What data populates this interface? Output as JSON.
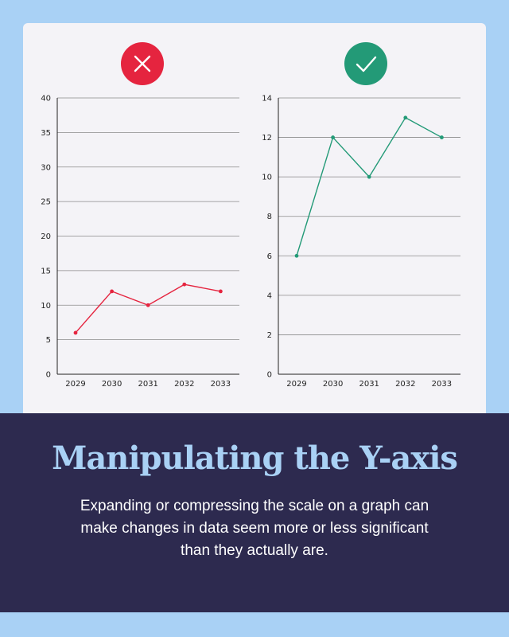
{
  "colors": {
    "bad": "#e5243f",
    "good": "#239a77",
    "background": "#a9d1f5",
    "banner": "#2d2a4f"
  },
  "badges": {
    "left_icon": "x-icon",
    "right_icon": "check-icon"
  },
  "headline": "Manipulating the Y-axis",
  "body": "Expanding or compressing the scale on a graph can make changes in data seem more or less significant than they actually are.",
  "chart_data": [
    {
      "type": "line",
      "categories": [
        "2029",
        "2030",
        "2031",
        "2032",
        "2033"
      ],
      "values": [
        6,
        12,
        10,
        13,
        12
      ],
      "ylim": [
        0,
        40
      ],
      "yticks": [
        0,
        5,
        10,
        15,
        20,
        25,
        30,
        35,
        40
      ],
      "grid": true,
      "color": "#e5243f"
    },
    {
      "type": "line",
      "categories": [
        "2029",
        "2030",
        "2031",
        "2032",
        "2033"
      ],
      "values": [
        6,
        12,
        10,
        13,
        12
      ],
      "ylim": [
        0,
        14
      ],
      "yticks": [
        0,
        2,
        4,
        6,
        8,
        10,
        12,
        14
      ],
      "grid": true,
      "color": "#239a77"
    }
  ]
}
